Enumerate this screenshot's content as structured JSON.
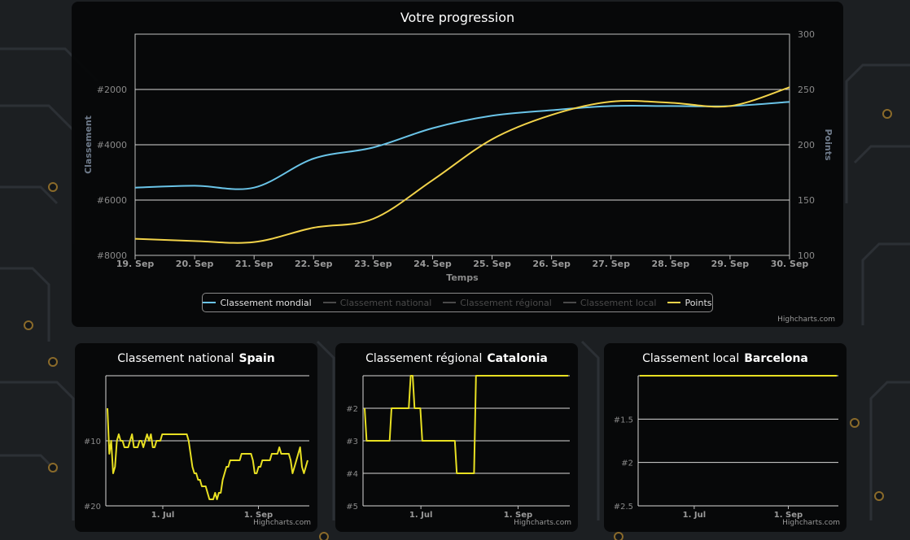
{
  "colors": {
    "mondial": "#6ac4e8",
    "points": "#f2d34a",
    "small": "#e8e022",
    "disabled": "#4a4a4a"
  },
  "main": {
    "title": "Votre progression",
    "credits": "Highcharts.com",
    "legend": [
      {
        "label": "Classement mondial",
        "color": "#6ac4e8",
        "enabled": true
      },
      {
        "label": "Classement national",
        "color": "#4a4a4a",
        "enabled": false
      },
      {
        "label": "Classement régional",
        "color": "#4a4a4a",
        "enabled": false
      },
      {
        "label": "Classement local",
        "color": "#4a4a4a",
        "enabled": false
      },
      {
        "label": "Points",
        "color": "#f2d34a",
        "enabled": true
      }
    ]
  },
  "chart_data": [
    {
      "type": "line",
      "title": "Votre progression",
      "xlabel": "Temps",
      "ylabel": "Classement",
      "y2label": "Points",
      "categories": [
        "19. Sep",
        "20. Sep",
        "21. Sep",
        "22. Sep",
        "23. Sep",
        "24. Sep",
        "25. Sep",
        "26. Sep",
        "27. Sep",
        "28. Sep",
        "29. Sep",
        "30. Sep"
      ],
      "y_ticks": [
        "#2000",
        "#4000",
        "#6000",
        "#8000"
      ],
      "y_range": [
        0,
        8000
      ],
      "y_reversed": true,
      "y2_ticks": [
        "100",
        "150",
        "200",
        "250",
        "300"
      ],
      "y2_range": [
        100,
        300
      ],
      "series": [
        {
          "name": "Classement mondial",
          "axis": "left",
          "values": [
            5550,
            5480,
            5550,
            4500,
            4100,
            3400,
            2950,
            2750,
            2600,
            2600,
            2600,
            2450
          ]
        },
        {
          "name": "Points",
          "axis": "right",
          "values": [
            115,
            113,
            112,
            125,
            133,
            168,
            205,
            227,
            239,
            238,
            235,
            252
          ]
        }
      ]
    },
    {
      "type": "line",
      "title": "Classement national",
      "region": "Spain",
      "x_ticks": [
        "1. Jul",
        "1. Sep"
      ],
      "y_ticks": [
        "#10",
        "#20"
      ],
      "y_range": [
        0,
        20
      ],
      "y_reversed": true,
      "credits": "Highcharts.com",
      "series": [
        {
          "name": "Classement national",
          "values": [
            5,
            12,
            10,
            15,
            14,
            10,
            9,
            10,
            10,
            11,
            11,
            11,
            10,
            9,
            11,
            11,
            11,
            10,
            10,
            11,
            10,
            9,
            10,
            9,
            11,
            11,
            10,
            10,
            10,
            9,
            9,
            9,
            9,
            9,
            9,
            9,
            9,
            9,
            9,
            9,
            9,
            9,
            9,
            10,
            12,
            14,
            15,
            15,
            16,
            16,
            17,
            17,
            17,
            18,
            19,
            19,
            19,
            18,
            19,
            18,
            18,
            16,
            15,
            14,
            14,
            13,
            13,
            13,
            13,
            13,
            13,
            12,
            12,
            12,
            12,
            12,
            12,
            13,
            15,
            15,
            14,
            14,
            13,
            13,
            13,
            13,
            13,
            12,
            12,
            12,
            12,
            11,
            12,
            12,
            12,
            12,
            12,
            13,
            15,
            14,
            13,
            12,
            11,
            14,
            15,
            14,
            13
          ]
        }
      ]
    },
    {
      "type": "line",
      "title": "Classement régional",
      "region": "Catalonia",
      "x_ticks": [
        "1. Jul",
        "1. Sep"
      ],
      "y_ticks": [
        "#2",
        "#3",
        "#4",
        "#5"
      ],
      "y_range": [
        1,
        5
      ],
      "y_reversed": true,
      "credits": "Highcharts.com",
      "series": [
        {
          "name": "Classement régional",
          "values": [
            2,
            3,
            3,
            3,
            3,
            3,
            3,
            3,
            3,
            3,
            3,
            3,
            3,
            3,
            2,
            2,
            2,
            2,
            2,
            2,
            2,
            2,
            2,
            2,
            1,
            1,
            2,
            2,
            2,
            2,
            3,
            3,
            3,
            3,
            3,
            3,
            3,
            3,
            3,
            3,
            3,
            3,
            3,
            3,
            3,
            3,
            3,
            3,
            4,
            4,
            4,
            4,
            4,
            4,
            4,
            4,
            4,
            4,
            1,
            1,
            1,
            1,
            1,
            1,
            1,
            1,
            1,
            1,
            1,
            1,
            1,
            1,
            1,
            1,
            1,
            1,
            1,
            1,
            1,
            1,
            1,
            1,
            1,
            1,
            1,
            1,
            1,
            1,
            1,
            1,
            1,
            1,
            1,
            1,
            1,
            1,
            1,
            1,
            1,
            1,
            1,
            1,
            1,
            1,
            1,
            1,
            1
          ]
        }
      ]
    },
    {
      "type": "line",
      "title": "Classement local",
      "region": "Barcelona",
      "x_ticks": [
        "1. Jul",
        "1. Sep"
      ],
      "y_ticks": [
        "#1.5",
        "#2",
        "#2.5"
      ],
      "y_range": [
        1,
        2.5
      ],
      "y_reversed": true,
      "credits": "Highcharts.com",
      "series": [
        {
          "name": "Classement local",
          "values": [
            1,
            1,
            1,
            1,
            1,
            1,
            1,
            1,
            1,
            1,
            1,
            1,
            1,
            1,
            1,
            1,
            1,
            1,
            1,
            1,
            1,
            1,
            1,
            1,
            1,
            1,
            1,
            1,
            1,
            1,
            1,
            1,
            1,
            1,
            1,
            1,
            1,
            1,
            1,
            1,
            1,
            1,
            1,
            1,
            1,
            1,
            1,
            1,
            1,
            1,
            1,
            1,
            1,
            1,
            1,
            1,
            1,
            1,
            1,
            1,
            1,
            1,
            1,
            1,
            1,
            1,
            1,
            1,
            1,
            1,
            1,
            1,
            1,
            1,
            1,
            1,
            1,
            1,
            1,
            1,
            1,
            1,
            1,
            1,
            1,
            1,
            1,
            1,
            1,
            1,
            1,
            1,
            1,
            1,
            1,
            1,
            1,
            1,
            1,
            1,
            1,
            1,
            1,
            1,
            1,
            1,
            1
          ]
        }
      ]
    }
  ]
}
